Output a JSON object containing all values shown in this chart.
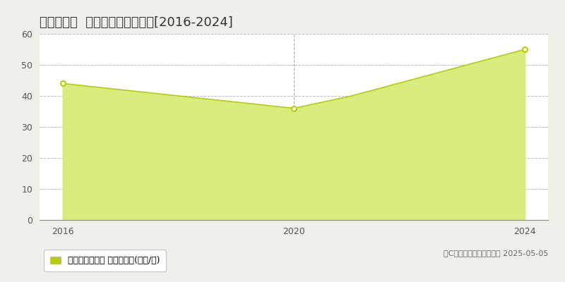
{
  "title": "高知市堺町  マンション価格推移[2016-2024]",
  "years": [
    2016,
    2017,
    2018,
    2019,
    2020,
    2021,
    2022,
    2023,
    2024
  ],
  "values": [
    44,
    42,
    40,
    38,
    36,
    40,
    45,
    50,
    55
  ],
  "ylim": [
    0,
    60
  ],
  "yticks": [
    0,
    10,
    20,
    30,
    40,
    50,
    60
  ],
  "xticks": [
    2016,
    2020,
    2024
  ],
  "line_color": "#b8cc00",
  "fill_color": "#d8ec80",
  "marker_years": [
    2016,
    2020,
    2024
  ],
  "marker_values": [
    44,
    36,
    55
  ],
  "grid_color": "#bbbbbb",
  "plot_bg_color": "#ffffff",
  "fig_bg_color": "#f0f0eb",
  "legend_label": "マンション価格 平均坪単価(万円/坪)",
  "copyright_text": "（C）土地価格ドットコム 2025-05-05",
  "vline_x": 2020,
  "title_fontsize": 13,
  "axis_fontsize": 9,
  "legend_fontsize": 9,
  "xlim_left": 2015.6,
  "xlim_right": 2024.4
}
